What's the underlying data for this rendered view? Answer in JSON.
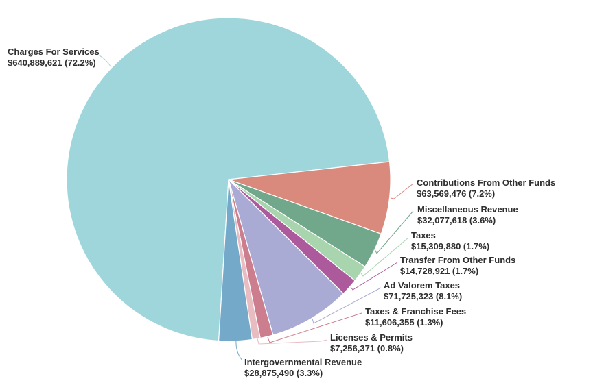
{
  "page": {
    "background": "#ffffff"
  },
  "chart_data": {
    "type": "pie",
    "title": "",
    "legend": "none",
    "direction": "clockwise",
    "start_angle_deg": 183.5,
    "label_text_color": "#2e2e2e",
    "slice_border_color": "#ffffff",
    "slices": [
      {
        "label": "Charges For Services",
        "value": 640889621,
        "pct": 72.2,
        "value_text": "$640,889,621 (72.2%)",
        "color": "#9fd6db"
      },
      {
        "label": "Contributions From Other Funds",
        "value": 63569476,
        "pct": 7.2,
        "value_text": "$63,569,476 (7.2%)",
        "color": "#da8a7d"
      },
      {
        "label": "Miscellaneous Revenue",
        "value": 32077618,
        "pct": 3.6,
        "value_text": "$32,077,618 (3.6%)",
        "color": "#71a78a"
      },
      {
        "label": "Taxes",
        "value": 15309880,
        "pct": 1.7,
        "value_text": "$15,309,880 (1.7%)",
        "color": "#a9d5ae"
      },
      {
        "label": "Transfer From Other Funds",
        "value": 14728921,
        "pct": 1.7,
        "value_text": "$14,728,921 (1.7%)",
        "color": "#ad5a9d"
      },
      {
        "label": "Ad Valorem Taxes",
        "value": 71725323,
        "pct": 8.1,
        "value_text": "$71,725,323 (8.1%)",
        "color": "#a9abd4"
      },
      {
        "label": "Taxes & Franchise Fees",
        "value": 11606355,
        "pct": 1.3,
        "value_text": "$11,606,355 (1.3%)",
        "color": "#cc7d8e"
      },
      {
        "label": "Licenses & Permits",
        "value": 7256371,
        "pct": 0.8,
        "value_text": "$7,256,371 (0.8%)",
        "color": "#e9bcc2"
      },
      {
        "label": "Intergovernmental Revenue",
        "value": 28875490,
        "pct": 3.3,
        "value_text": "$28,875,490 (3.3%)",
        "color": "#74a9c9"
      }
    ]
  }
}
